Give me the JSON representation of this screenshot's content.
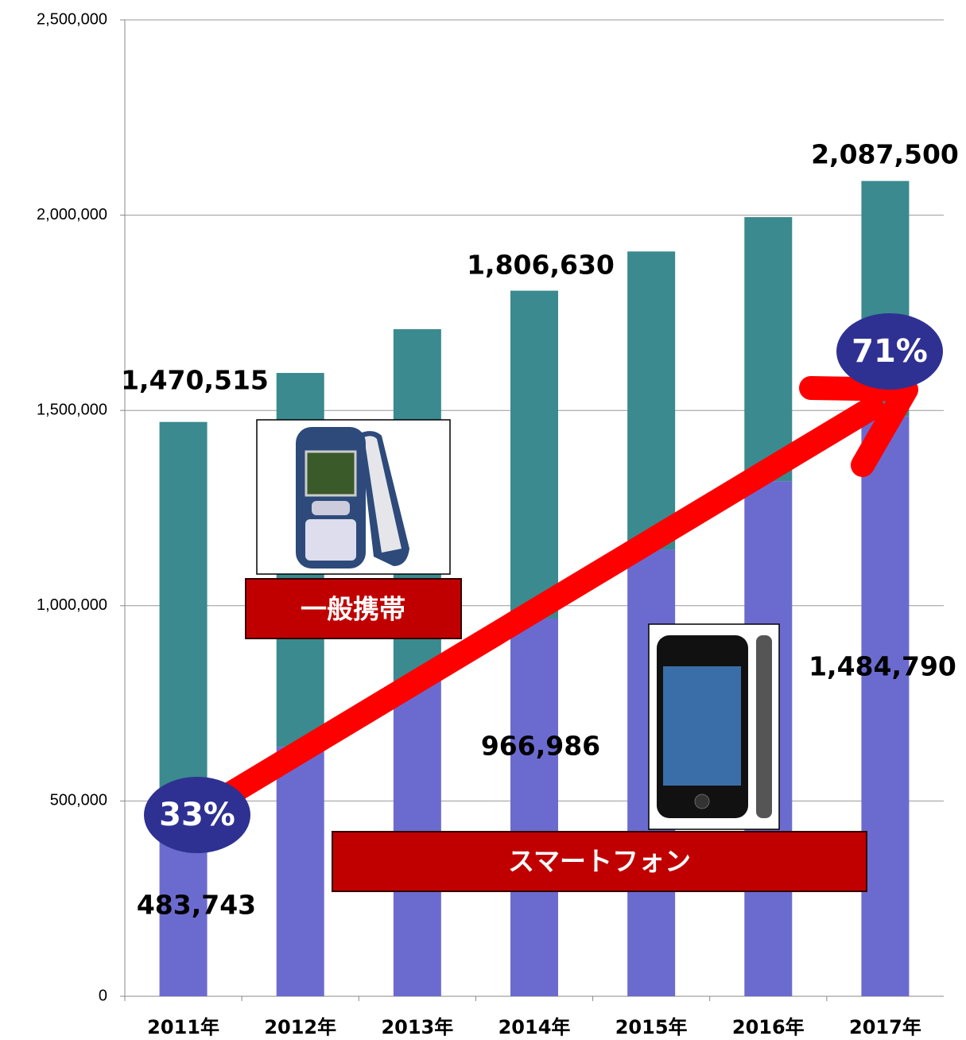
{
  "chart_data": {
    "type": "bar",
    "stacked": true,
    "categories": [
      "2011年",
      "2012年",
      "2013年",
      "2014年",
      "2015年",
      "2016年",
      "2017年"
    ],
    "series": [
      {
        "name": "スマートフォン",
        "color": "#6b6bcf",
        "values": [
          483743,
          639000,
          808000,
          966986,
          1144000,
          1319000,
          1484790
        ],
        "value_labels": [
          "483,743",
          null,
          null,
          "966,986",
          null,
          null,
          "1,484,790"
        ]
      },
      {
        "name": "一般携帯",
        "color": "#3a8a8f",
        "values": [
          986772,
          957000,
          900000,
          839644,
          763000,
          676000,
          602710
        ]
      }
    ],
    "annotations": [
      "1,470,515",
      "1,806,630",
      "2,087,500",
      "33%",
      "71%"
    ],
    "ylim": [
      0,
      2500000
    ],
    "yticks": [
      0,
      {
        "value": 500000,
        "label": "500,000"
      },
      {
        "value": 1000000,
        "label": "1,000,000"
      },
      {
        "value": 1500000,
        "label": "1,500,000"
      },
      {
        "value": 2000000,
        "label": "2,000,000"
      },
      {
        "value": 2500000,
        "label": "2,500,000"
      }
    ],
    "grid": true
  }
}
